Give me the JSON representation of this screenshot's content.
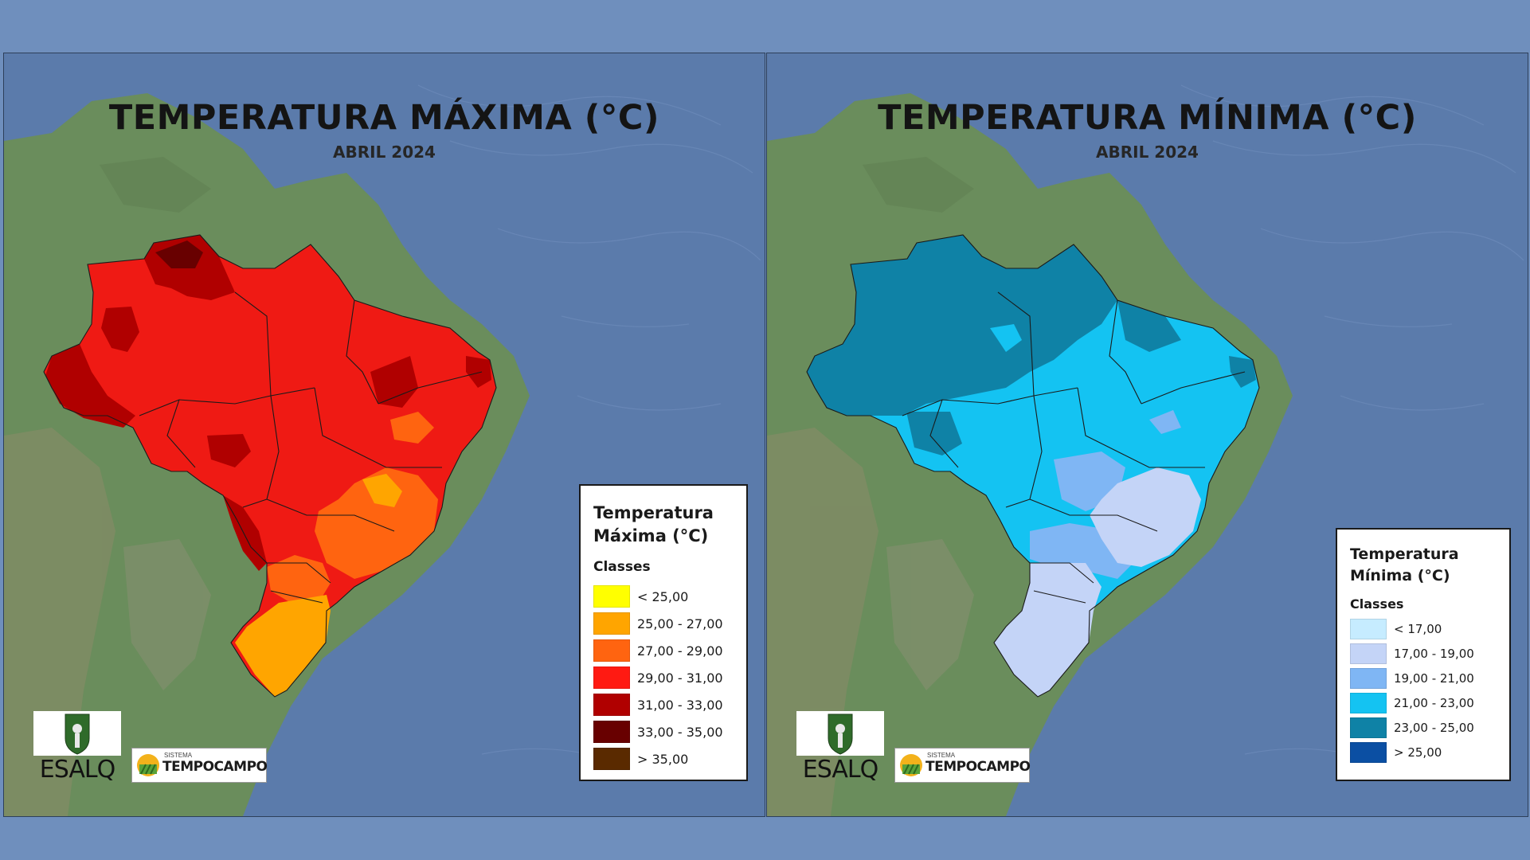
{
  "colors": {
    "ocean": "#5b7bab",
    "land": "#6a8d5c",
    "max_base": "#ef1a14",
    "min_base": "#14c3f2",
    "border_line": "#1a1a1a"
  },
  "panels": [
    {
      "id": "max",
      "title": "TEMPERATURA MÁXIMA (°C)",
      "subtitle": "ABRIL 2024",
      "legend": {
        "title_line1": "Temperatura",
        "title_line2": "Máxima (°C)",
        "classes_label": "Classes",
        "classes": [
          {
            "label": "< 25,00",
            "color": "#ffff00"
          },
          {
            "label": "25,00 - 27,00",
            "color": "#ffa500"
          },
          {
            "label": "27,00 - 29,00",
            "color": "#ff6410"
          },
          {
            "label": "29,00 - 31,00",
            "color": "#ff1a12"
          },
          {
            "label": "31,00 - 33,00",
            "color": "#b00000"
          },
          {
            "label": "33,00 - 35,00",
            "color": "#680000"
          },
          {
            "label": "> 35,00",
            "color": "#5a2a00"
          }
        ]
      },
      "logos": {
        "esalq": "ESALQ",
        "sistema": "SISTEMA",
        "tempocampo": "TEMPOCAMPO"
      }
    },
    {
      "id": "min",
      "title": "TEMPERATURA MÍNIMA (°C)",
      "subtitle": "ABRIL 2024",
      "legend": {
        "title_line1": "Temperatura",
        "title_line2": "Mínima (°C)",
        "classes_label": "Classes",
        "classes": [
          {
            "label": "< 17,00",
            "color": "#c6ecff"
          },
          {
            "label": "17,00 - 19,00",
            "color": "#c4d4f7"
          },
          {
            "label": "19,00 - 21,00",
            "color": "#7fb6f4"
          },
          {
            "label": "21,00 - 23,00",
            "color": "#14c3f2"
          },
          {
            "label": "23,00 - 25,00",
            "color": "#0f82a6"
          },
          {
            "label": "> 25,00",
            "color": "#0b4fa3"
          }
        ]
      },
      "logos": {
        "esalq": "ESALQ",
        "sistema": "SISTEMA",
        "tempocampo": "TEMPOCAMPO"
      }
    }
  ]
}
